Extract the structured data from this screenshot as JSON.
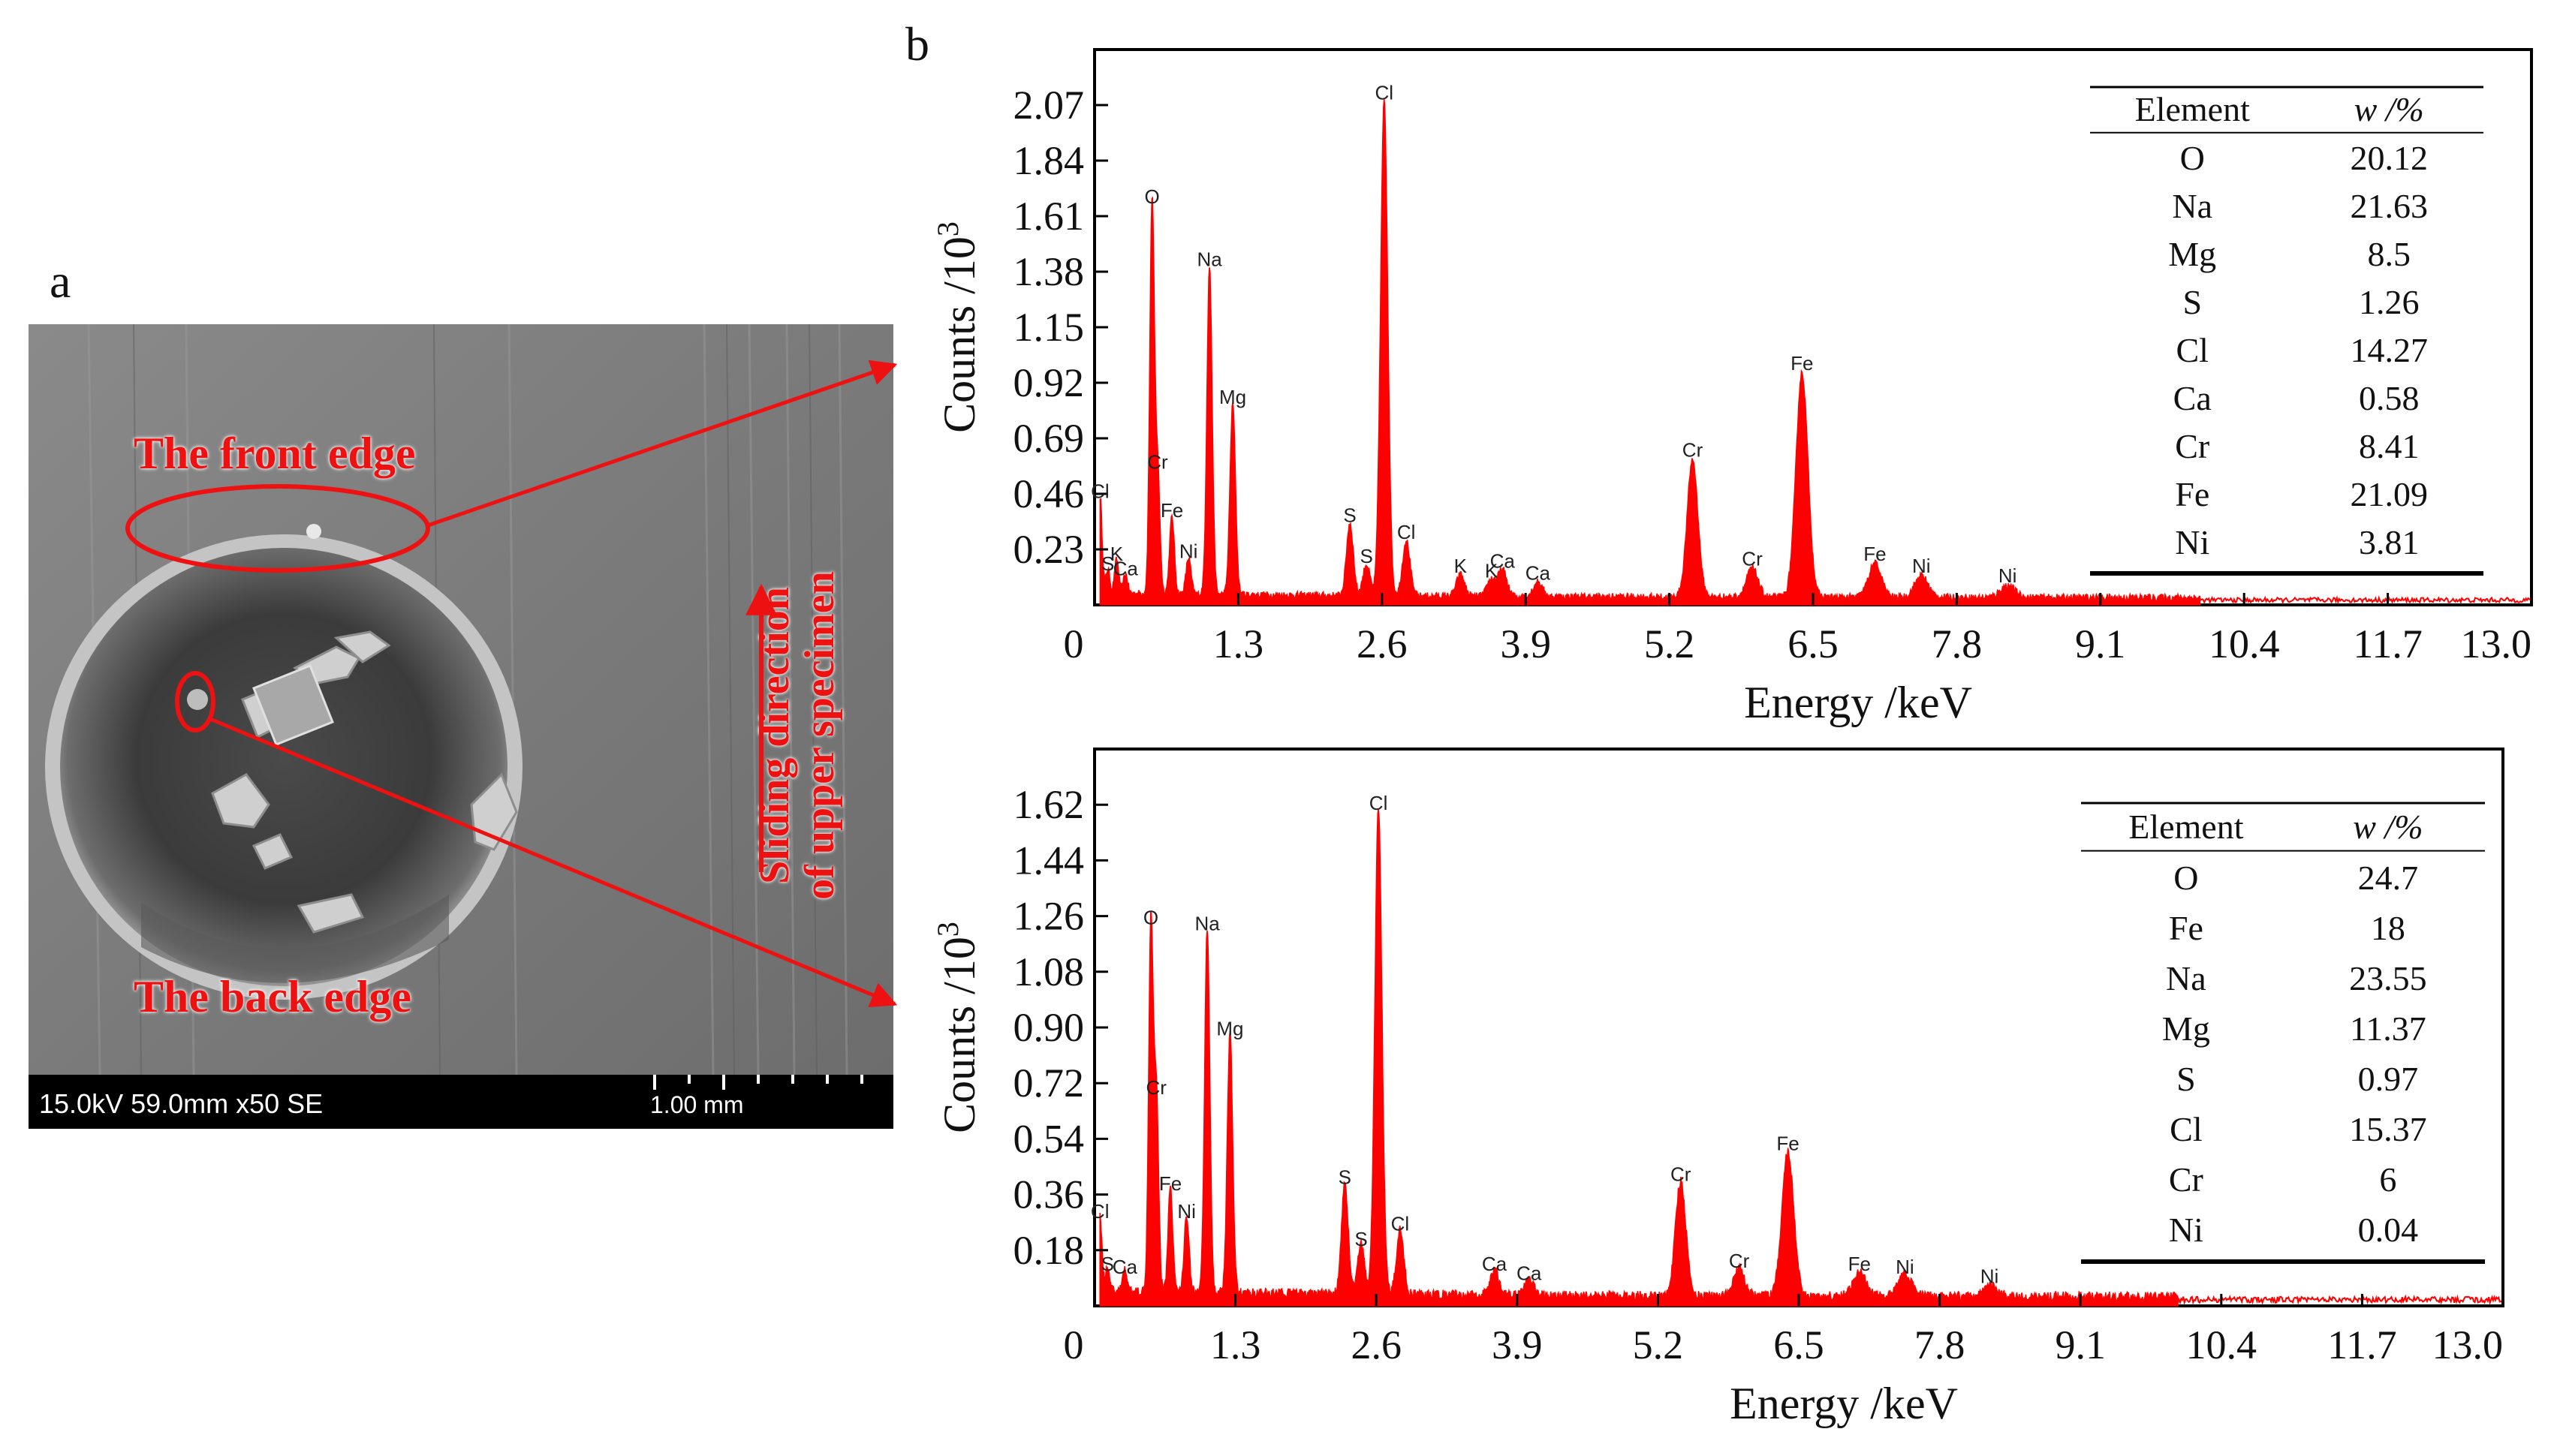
{
  "panel_labels": {
    "a": "a",
    "b": "b"
  },
  "sem": {
    "front_edge": "The front edge",
    "back_edge": "The back edge",
    "sliding_line1": "Sliding direction",
    "sliding_line2": "of upper specimen",
    "info": "15.0kV 59.0mm x50 SE",
    "scale": "1.00 mm",
    "annotation_color": "#ee1111"
  },
  "chart_data": [
    {
      "type": "line",
      "series_color": "#ff0000",
      "xlabel": "Energy /keV",
      "ylabel": "Counts /10",
      "ylabel_sup": "3",
      "xlim": [
        0,
        13.0
      ],
      "ylim": [
        0,
        2.3
      ],
      "xticks": [
        "0",
        "1.3",
        "2.6",
        "3.9",
        "5.2",
        "6.5",
        "7.8",
        "9.1",
        "10.4",
        "11.7",
        "13.0"
      ],
      "yticks": [
        "0.23",
        "0.46",
        "0.69",
        "0.92",
        "1.15",
        "1.38",
        "1.61",
        "1.84",
        "2.07"
      ],
      "peaks": [
        {
          "label": "S",
          "x": 0.12,
          "y": 0.1
        },
        {
          "label": "Ca",
          "x": 0.28,
          "y": 0.08
        },
        {
          "label": "K",
          "x": 0.2,
          "y": 0.14
        },
        {
          "label": "Cl",
          "x": 0.05,
          "y": 0.4
        },
        {
          "label": "O",
          "x": 0.52,
          "y": 1.62
        },
        {
          "label": "Cr",
          "x": 0.57,
          "y": 0.52
        },
        {
          "label": "Fe",
          "x": 0.7,
          "y": 0.32
        },
        {
          "label": "Ni",
          "x": 0.85,
          "y": 0.15
        },
        {
          "label": "Na",
          "x": 1.04,
          "y": 1.36
        },
        {
          "label": "Mg",
          "x": 1.25,
          "y": 0.79
        },
        {
          "label": "S",
          "x": 2.31,
          "y": 0.3
        },
        {
          "label": "S",
          "x": 2.46,
          "y": 0.13
        },
        {
          "label": "Cl",
          "x": 2.62,
          "y": 2.05
        },
        {
          "label": "Cl",
          "x": 2.82,
          "y": 0.23
        },
        {
          "label": "K",
          "x": 3.31,
          "y": 0.09
        },
        {
          "label": "K",
          "x": 3.59,
          "y": 0.07
        },
        {
          "label": "Ca",
          "x": 3.69,
          "y": 0.11
        },
        {
          "label": "Ca",
          "x": 4.01,
          "y": 0.06
        },
        {
          "label": "Cr",
          "x": 5.41,
          "y": 0.57
        },
        {
          "label": "Cr",
          "x": 5.95,
          "y": 0.12
        },
        {
          "label": "Fe",
          "x": 6.4,
          "y": 0.93
        },
        {
          "label": "Fe",
          "x": 7.06,
          "y": 0.14
        },
        {
          "label": "Ni",
          "x": 7.48,
          "y": 0.09
        },
        {
          "label": "Ni",
          "x": 8.26,
          "y": 0.05
        }
      ],
      "table": {
        "headers": [
          "Element",
          "w /%"
        ],
        "rows": [
          [
            "O",
            "20.12"
          ],
          [
            "Na",
            "21.63"
          ],
          [
            "Mg",
            "8.5"
          ],
          [
            "S",
            "1.26"
          ],
          [
            "Cl",
            "14.27"
          ],
          [
            "Ca",
            "0.58"
          ],
          [
            "Cr",
            "8.41"
          ],
          [
            "Fe",
            "21.09"
          ],
          [
            "Ni",
            "3.81"
          ]
        ]
      }
    },
    {
      "type": "line",
      "series_color": "#ff0000",
      "xlabel": "Energy /keV",
      "ylabel": "Counts /10",
      "ylabel_sup": "3",
      "xlim": [
        0,
        13.0
      ],
      "ylim": [
        0,
        1.8
      ],
      "xticks": [
        "0",
        "1.3",
        "2.6",
        "3.9",
        "5.2",
        "6.5",
        "7.8",
        "9.1",
        "10.4",
        "11.7",
        "13.0"
      ],
      "yticks": [
        "0.18",
        "0.36",
        "0.54",
        "0.72",
        "0.90",
        "1.08",
        "1.26",
        "1.44",
        "1.62"
      ],
      "peaks": [
        {
          "label": "S",
          "x": 0.12,
          "y": 0.08
        },
        {
          "label": "Ca",
          "x": 0.28,
          "y": 0.07
        },
        {
          "label": "Cl",
          "x": 0.05,
          "y": 0.25
        },
        {
          "label": "O",
          "x": 0.52,
          "y": 1.2
        },
        {
          "label": "Cr",
          "x": 0.57,
          "y": 0.65
        },
        {
          "label": "Fe",
          "x": 0.7,
          "y": 0.34
        },
        {
          "label": "Ni",
          "x": 0.85,
          "y": 0.25
        },
        {
          "label": "Na",
          "x": 1.04,
          "y": 1.18
        },
        {
          "label": "Mg",
          "x": 1.25,
          "y": 0.84
        },
        {
          "label": "S",
          "x": 2.31,
          "y": 0.36
        },
        {
          "label": "S",
          "x": 2.46,
          "y": 0.16
        },
        {
          "label": "Cl",
          "x": 2.62,
          "y": 1.57
        },
        {
          "label": "Cl",
          "x": 2.82,
          "y": 0.21
        },
        {
          "label": "Ca",
          "x": 3.69,
          "y": 0.08
        },
        {
          "label": "Ca",
          "x": 4.01,
          "y": 0.05
        },
        {
          "label": "Cr",
          "x": 5.41,
          "y": 0.37
        },
        {
          "label": "Cr",
          "x": 5.95,
          "y": 0.09
        },
        {
          "label": "Fe",
          "x": 6.4,
          "y": 0.47
        },
        {
          "label": "Fe",
          "x": 7.06,
          "y": 0.08
        },
        {
          "label": "Ni",
          "x": 7.48,
          "y": 0.07
        },
        {
          "label": "Ni",
          "x": 8.26,
          "y": 0.04
        }
      ],
      "table": {
        "headers": [
          "Element",
          "w /%"
        ],
        "rows": [
          [
            "O",
            "24.7"
          ],
          [
            "Fe",
            "18"
          ],
          [
            "Na",
            "23.55"
          ],
          [
            "Mg",
            "11.37"
          ],
          [
            "S",
            "0.97"
          ],
          [
            "Cl",
            "15.37"
          ],
          [
            "Cr",
            "6"
          ],
          [
            "Ni",
            "0.04"
          ]
        ]
      }
    }
  ]
}
